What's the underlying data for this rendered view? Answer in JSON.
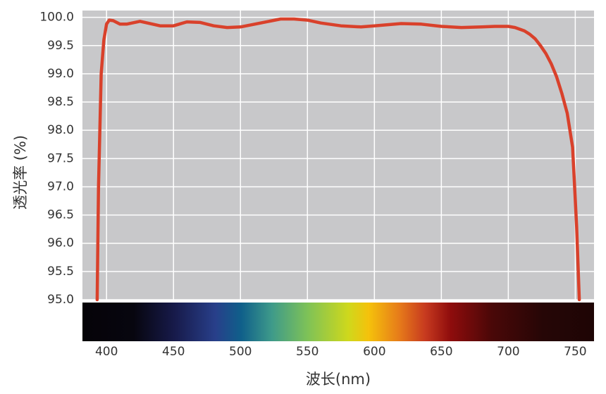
{
  "chart_data": {
    "type": "line",
    "x_label": "波长(nm)",
    "y_label": "透光率 (%)",
    "xlim": [
      382,
      764
    ],
    "ylim": [
      95,
      100.12
    ],
    "xticks": [
      400,
      450,
      500,
      550,
      600,
      650,
      700,
      750
    ],
    "yticks": [
      {
        "value": 95,
        "label": "95.0"
      },
      {
        "value": 95.5,
        "label": "95.5"
      },
      {
        "value": 96,
        "label": "96.0"
      },
      {
        "value": 96.5,
        "label": "96.5"
      },
      {
        "value": 97,
        "label": "97.0"
      },
      {
        "value": 97.5,
        "label": "97.5"
      },
      {
        "value": 98,
        "label": "98.0"
      },
      {
        "value": 98.5,
        "label": "98.5"
      },
      {
        "value": 99,
        "label": "99.0"
      },
      {
        "value": 99.5,
        "label": "99.5"
      },
      {
        "value": 100,
        "label": "100.0"
      }
    ],
    "grid": true,
    "background": "#c8c8ca",
    "series": [
      {
        "color": "#d9412b",
        "x": [
          393,
          394,
          396,
          398,
          400,
          402,
          405,
          410,
          415,
          425,
          440,
          450,
          460,
          470,
          480,
          490,
          500,
          515,
          530,
          540,
          550,
          560,
          575,
          590,
          600,
          620,
          635,
          650,
          665,
          680,
          690,
          700,
          705,
          712,
          716,
          720,
          724,
          728,
          732,
          736,
          740,
          744,
          748,
          751,
          753
        ],
        "values": [
          95.0,
          97.0,
          99.0,
          99.6,
          99.88,
          99.95,
          99.94,
          99.88,
          99.88,
          99.93,
          99.85,
          99.85,
          99.92,
          99.91,
          99.85,
          99.82,
          99.83,
          99.9,
          99.97,
          99.97,
          99.95,
          99.9,
          99.85,
          99.83,
          99.85,
          99.89,
          99.88,
          99.84,
          99.82,
          99.83,
          99.84,
          99.84,
          99.82,
          99.76,
          99.7,
          99.62,
          99.5,
          99.36,
          99.18,
          98.95,
          98.65,
          98.3,
          97.7,
          96.3,
          95.0
        ]
      }
    ]
  }
}
